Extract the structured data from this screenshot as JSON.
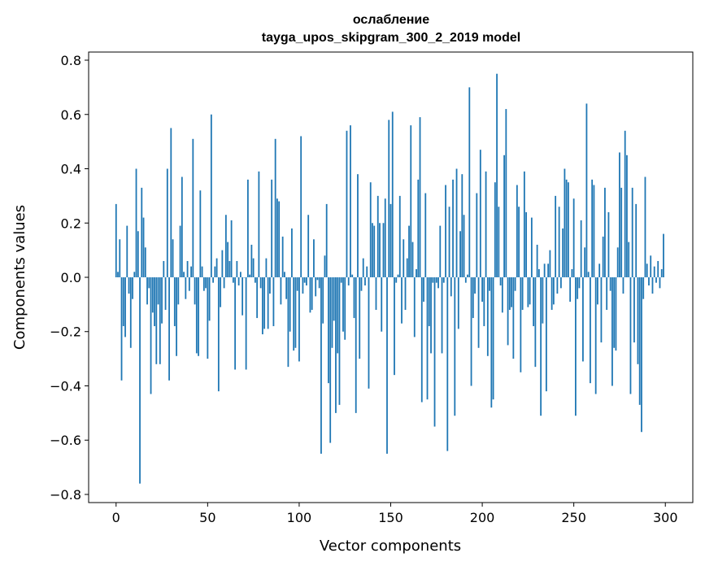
{
  "chart_data": {
    "type": "bar",
    "title": "ослабление",
    "subtitle": "tayga_upos_skipgram_300_2_2019 model",
    "xlabel": "Vector components",
    "ylabel": "Components values",
    "xlim": [
      -15,
      315
    ],
    "ylim": [
      -0.83,
      0.83
    ],
    "xticks": [
      0,
      50,
      100,
      150,
      200,
      250,
      300
    ],
    "yticks": [
      -0.8,
      -0.6,
      -0.4,
      -0.2,
      0.0,
      0.2,
      0.4,
      0.6,
      0.8
    ],
    "ytick_labels": [
      "−0.8",
      "−0.6",
      "−0.4",
      "−0.2",
      "0.0",
      "0.2",
      "0.4",
      "0.6",
      "0.8"
    ],
    "grid": false,
    "color": "#1f77b4",
    "values": [
      0.27,
      0.02,
      0.14,
      -0.38,
      -0.18,
      -0.22,
      0.19,
      -0.06,
      -0.26,
      -0.08,
      0.02,
      0.4,
      0.17,
      -0.76,
      0.33,
      0.22,
      0.11,
      -0.1,
      -0.04,
      -0.43,
      -0.13,
      -0.18,
      -0.32,
      -0.1,
      -0.32,
      -0.17,
      0.06,
      -0.12,
      0.4,
      -0.38,
      0.55,
      0.14,
      -0.18,
      -0.29,
      -0.1,
      0.19,
      0.37,
      0.02,
      -0.08,
      0.06,
      -0.05,
      0.04,
      0.51,
      -0.1,
      -0.28,
      -0.29,
      0.32,
      0.04,
      -0.05,
      -0.04,
      -0.3,
      -0.16,
      0.6,
      -0.02,
      0.04,
      0.07,
      -0.42,
      -0.11,
      0.1,
      -0.04,
      0.23,
      0.13,
      0.06,
      0.21,
      -0.02,
      -0.34,
      0.06,
      -0.03,
      0.02,
      -0.14,
      0.0,
      -0.34,
      0.36,
      0.01,
      0.12,
      0.07,
      -0.02,
      -0.15,
      0.39,
      -0.04,
      -0.21,
      -0.19,
      0.07,
      -0.19,
      -0.06,
      0.36,
      -0.18,
      0.51,
      0.29,
      0.28,
      -0.1,
      0.15,
      0.02,
      -0.08,
      -0.33,
      -0.2,
      0.18,
      -0.27,
      -0.26,
      -0.05,
      -0.31,
      0.52,
      -0.06,
      -0.02,
      -0.03,
      0.23,
      -0.13,
      -0.12,
      0.14,
      -0.07,
      -0.01,
      -0.04,
      -0.65,
      -0.17,
      0.08,
      0.27,
      -0.39,
      -0.61,
      -0.26,
      -0.16,
      -0.5,
      -0.28,
      -0.47,
      -0.02,
      -0.2,
      -0.23,
      0.54,
      -0.03,
      0.56,
      0.01,
      -0.15,
      -0.5,
      0.38,
      -0.3,
      -0.05,
      0.07,
      -0.03,
      0.04,
      -0.41,
      0.35,
      0.2,
      0.19,
      -0.12,
      0.3,
      0.2,
      -0.2,
      0.2,
      0.29,
      -0.65,
      0.58,
      0.27,
      0.61,
      -0.36,
      -0.02,
      0.01,
      0.3,
      -0.17,
      0.14,
      -0.12,
      0.07,
      0.19,
      0.56,
      0.13,
      -0.22,
      0.03,
      0.36,
      0.59,
      -0.46,
      -0.09,
      0.31,
      -0.45,
      -0.18,
      -0.28,
      -0.02,
      -0.55,
      -0.02,
      -0.04,
      0.19,
      -0.28,
      -0.02,
      0.34,
      -0.64,
      0.26,
      -0.07,
      0.36,
      -0.51,
      0.4,
      -0.19,
      0.17,
      0.38,
      0.23,
      -0.02,
      0.01,
      0.7,
      -0.4,
      -0.15,
      -0.06,
      0.31,
      -0.26,
      0.47,
      -0.09,
      -0.18,
      0.39,
      -0.29,
      -0.05,
      -0.48,
      -0.45,
      0.35,
      0.75,
      0.26,
      -0.03,
      -0.13,
      0.45,
      0.62,
      -0.25,
      -0.12,
      -0.11,
      -0.3,
      -0.05,
      0.34,
      0.26,
      -0.35,
      -0.12,
      0.39,
      0.24,
      -0.11,
      -0.1,
      0.22,
      -0.18,
      -0.33,
      0.12,
      0.03,
      -0.51,
      -0.17,
      0.05,
      -0.42,
      0.05,
      0.1,
      -0.12,
      -0.1,
      0.3,
      -0.06,
      0.26,
      -0.04,
      0.18,
      0.4,
      0.36,
      0.35,
      -0.09,
      0.03,
      0.29,
      -0.51,
      -0.08,
      -0.04,
      0.21,
      -0.31,
      0.11,
      0.64,
      0.02,
      -0.39,
      0.36,
      0.34,
      -0.43,
      -0.1,
      0.05,
      -0.24,
      0.15,
      0.33,
      -0.12,
      0.24,
      -0.05,
      -0.4,
      -0.26,
      -0.27,
      0.11,
      0.46,
      0.33,
      -0.06,
      0.54,
      0.45,
      0.13,
      -0.43,
      0.33,
      -0.24,
      0.27,
      -0.32,
      -0.47,
      -0.57,
      -0.08,
      0.37,
      0.05,
      -0.03,
      0.08,
      -0.06,
      0.04,
      -0.02,
      0.06,
      -0.04,
      0.03,
      0.16
    ]
  }
}
